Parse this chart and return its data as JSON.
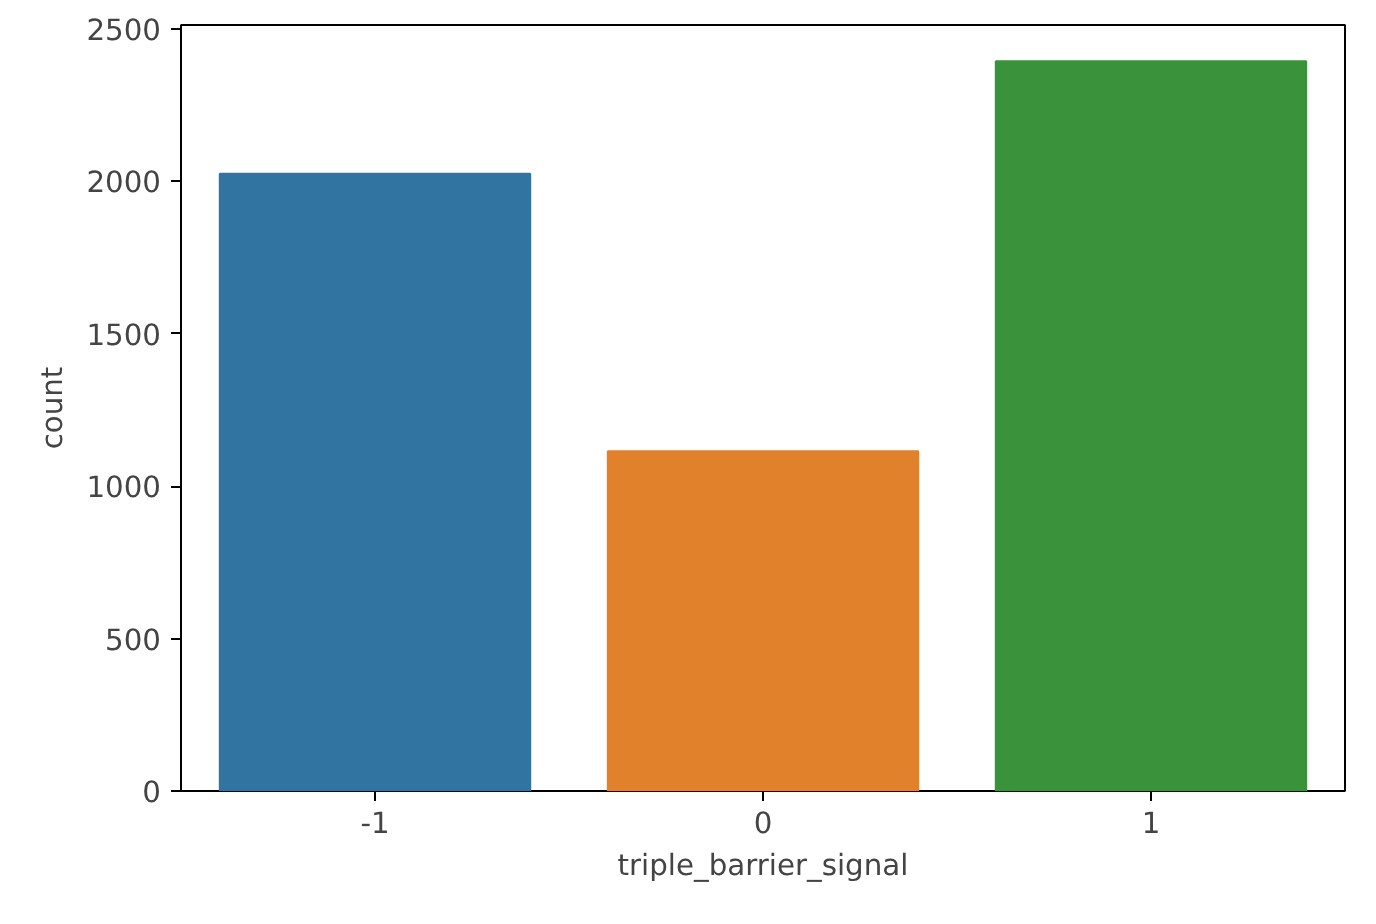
{
  "chart_data": {
    "type": "bar",
    "xlabel": "triple_barrier_signal",
    "ylabel": "count",
    "categories": [
      "-1",
      "0",
      "1"
    ],
    "values": [
      2025,
      1115,
      2394
    ],
    "colors": [
      "#3274a1",
      "#e1812c",
      "#3a923a"
    ],
    "ylim": [
      0,
      2513
    ],
    "yticks": [
      0,
      500,
      1000,
      1500,
      2000,
      2500
    ],
    "grid": false
  }
}
